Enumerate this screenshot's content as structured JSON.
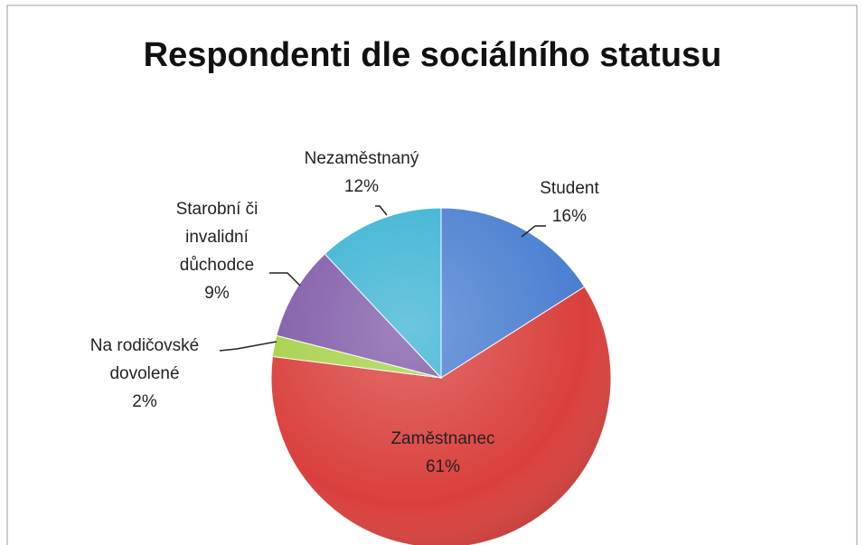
{
  "chart_data": {
    "type": "pie",
    "title": "Respondenti dle sociálního statusu",
    "categories": [
      "Student",
      "Zaměstnanec",
      "Na rodičovské dovolené",
      "Starobní či invalidní důchodce",
      "Nezaměstnaný"
    ],
    "values": [
      16,
      61,
      2,
      9,
      12
    ],
    "value_labels": [
      "16%",
      "61%",
      "2%",
      "9%",
      "12%"
    ],
    "colors": [
      "#4a7fd0",
      "#d9403c",
      "#a6d14a",
      "#7f5aa8",
      "#3bb3d3"
    ]
  }
}
